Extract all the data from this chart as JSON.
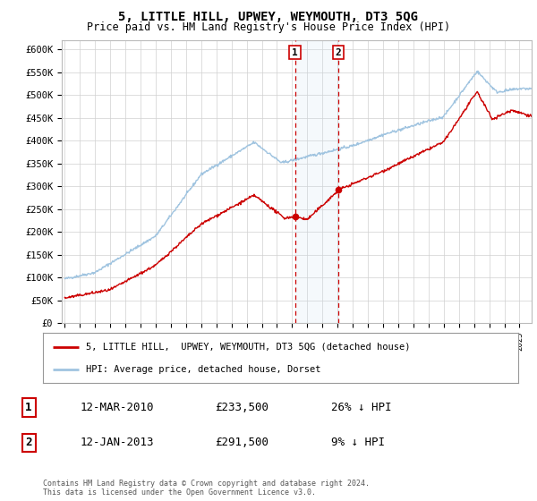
{
  "title": "5, LITTLE HILL, UPWEY, WEYMOUTH, DT3 5QG",
  "subtitle": "Price paid vs. HM Land Registry's House Price Index (HPI)",
  "hpi_color": "#a0c4e0",
  "property_color": "#cc0000",
  "dashed_color": "#cc0000",
  "shaded_color": "#cce0f0",
  "bg_color": "#ffffff",
  "ylim": [
    0,
    620000
  ],
  "yticks": [
    0,
    50000,
    100000,
    150000,
    200000,
    250000,
    300000,
    350000,
    400000,
    450000,
    500000,
    550000,
    600000
  ],
  "xlim_start": 1994.8,
  "xlim_end": 2025.8,
  "sale1_date": 2010.19,
  "sale1_price": 233500,
  "sale2_date": 2013.04,
  "sale2_price": 291500,
  "legend_property": "5, LITTLE HILL,  UPWEY, WEYMOUTH, DT3 5QG (detached house)",
  "legend_hpi": "HPI: Average price, detached house, Dorset",
  "sale1_label": "1",
  "sale2_label": "2",
  "sale1_text": "12-MAR-2010",
  "sale1_value": "£233,500",
  "sale1_hpi": "26% ↓ HPI",
  "sale2_text": "12-JAN-2013",
  "sale2_value": "£291,500",
  "sale2_hpi": "9% ↓ HPI",
  "footer1": "Contains HM Land Registry data © Crown copyright and database right 2024.",
  "footer2": "This data is licensed under the Open Government Licence v3.0."
}
